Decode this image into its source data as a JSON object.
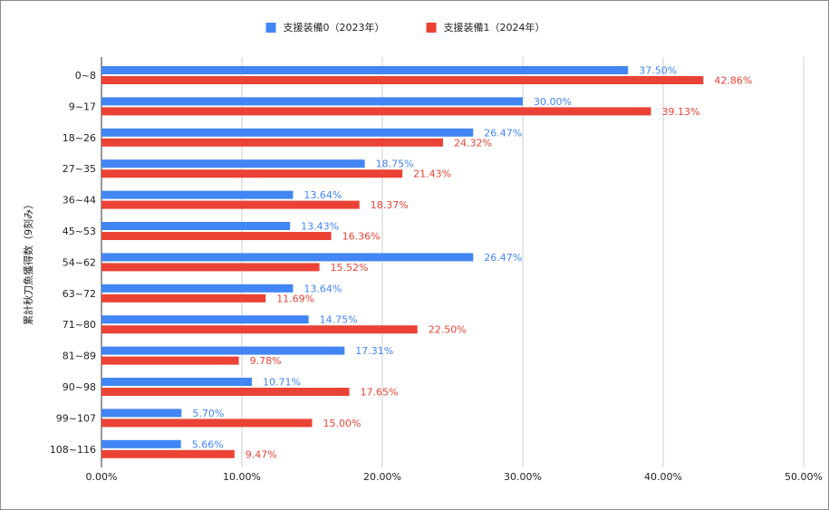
{
  "chart_data": {
    "type": "bar",
    "orientation": "horizontal",
    "title": "",
    "xlabel": "",
    "ylabel": "累計秋刀魚獲得数（9刻み）",
    "categories": [
      "0~8",
      "9~17",
      "18~26",
      "27~35",
      "36~44",
      "45~53",
      "54~62",
      "63~72",
      "71~80",
      "81~89",
      "90~98",
      "99~107",
      "108~116"
    ],
    "series": [
      {
        "name": "支援装備0（2023年）",
        "color": "#4285f4",
        "values": [
          37.5,
          30.0,
          26.47,
          18.75,
          13.64,
          13.43,
          26.47,
          13.64,
          14.75,
          17.31,
          10.71,
          5.7,
          5.66
        ],
        "labels": [
          "37.50%",
          "30.00%",
          "26.47%",
          "18.75%",
          "13.64%",
          "13.43%",
          "26.47%",
          "13.64%",
          "14.75%",
          "17.31%",
          "10.71%",
          "5.70%",
          "5.66%"
        ]
      },
      {
        "name": "支援装備1（2024年）",
        "color": "#ea4335",
        "values": [
          42.86,
          39.13,
          24.32,
          21.43,
          18.37,
          16.36,
          15.52,
          11.69,
          22.5,
          9.78,
          17.65,
          15.0,
          9.47
        ],
        "labels": [
          "42.86%",
          "39.13%",
          "24.32%",
          "21.43%",
          "18.37%",
          "16.36%",
          "15.52%",
          "11.69%",
          "22.50%",
          "9.78%",
          "17.65%",
          "15.00%",
          "9.47%"
        ]
      }
    ],
    "xlim": [
      0,
      50
    ],
    "x_ticks": [
      0,
      10,
      20,
      30,
      40,
      50
    ],
    "x_tick_labels": [
      "0.00%",
      "10.00%",
      "20.00%",
      "30.00%",
      "40.00%",
      "50.00%"
    ],
    "grid": "vertical",
    "legend_position": "top-center"
  }
}
